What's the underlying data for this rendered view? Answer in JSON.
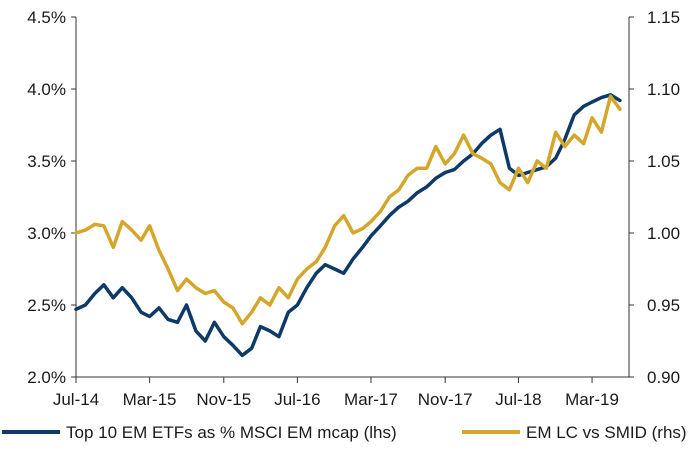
{
  "chart_data": {
    "type": "line",
    "title": "",
    "xlabel": "",
    "ylabel": "",
    "grid": false,
    "legend_placement": "bottom",
    "x_tick_labels": [
      "Jul-14",
      "Mar-15",
      "Nov-15",
      "Jul-16",
      "Mar-17",
      "Nov-17",
      "Jul-18",
      "Mar-19"
    ],
    "y_left": {
      "ylim": [
        0.02,
        0.045
      ],
      "tick_labels": [
        "2.0%",
        "2.5%",
        "3.0%",
        "3.5%",
        "4.0%",
        "4.5%"
      ]
    },
    "y_right": {
      "ylim": [
        0.9,
        1.15
      ],
      "tick_labels": [
        "0.90",
        "0.95",
        "1.00",
        "1.05",
        "1.10",
        "1.15"
      ]
    },
    "series": [
      {
        "name": "Top 10 EM ETFs as % MSCI EM mcap (lhs)",
        "axis": "left",
        "color": "#0d3a66",
        "points": [
          [
            "2014-07",
            0.0247
          ],
          [
            "2014-08",
            0.025
          ],
          [
            "2014-09",
            0.0258
          ],
          [
            "2014-10",
            0.0264
          ],
          [
            "2014-11",
            0.0255
          ],
          [
            "2014-12",
            0.0262
          ],
          [
            "2015-01",
            0.0255
          ],
          [
            "2015-02",
            0.0245
          ],
          [
            "2015-03",
            0.0242
          ],
          [
            "2015-04",
            0.0248
          ],
          [
            "2015-05",
            0.024
          ],
          [
            "2015-06",
            0.0238
          ],
          [
            "2015-07",
            0.025
          ],
          [
            "2015-08",
            0.0232
          ],
          [
            "2015-09",
            0.0225
          ],
          [
            "2015-10",
            0.0238
          ],
          [
            "2015-11",
            0.0228
          ],
          [
            "2015-12",
            0.0222
          ],
          [
            "2016-01",
            0.0215
          ],
          [
            "2016-02",
            0.022
          ],
          [
            "2016-03",
            0.0235
          ],
          [
            "2016-04",
            0.0232
          ],
          [
            "2016-05",
            0.0228
          ],
          [
            "2016-06",
            0.0245
          ],
          [
            "2016-07",
            0.025
          ],
          [
            "2016-08",
            0.0262
          ],
          [
            "2016-09",
            0.0272
          ],
          [
            "2016-10",
            0.0278
          ],
          [
            "2016-11",
            0.0275
          ],
          [
            "2016-12",
            0.0272
          ],
          [
            "2017-01",
            0.0282
          ],
          [
            "2017-02",
            0.029
          ],
          [
            "2017-03",
            0.0298
          ],
          [
            "2017-04",
            0.0305
          ],
          [
            "2017-05",
            0.0312
          ],
          [
            "2017-06",
            0.0318
          ],
          [
            "2017-07",
            0.0322
          ],
          [
            "2017-08",
            0.0328
          ],
          [
            "2017-09",
            0.0332
          ],
          [
            "2017-10",
            0.0338
          ],
          [
            "2017-11",
            0.0342
          ],
          [
            "2017-12",
            0.0344
          ],
          [
            "2018-01",
            0.035
          ],
          [
            "2018-02",
            0.0355
          ],
          [
            "2018-03",
            0.0362
          ],
          [
            "2018-04",
            0.0368
          ],
          [
            "2018-05",
            0.0372
          ],
          [
            "2018-06",
            0.0345
          ],
          [
            "2018-07",
            0.034
          ],
          [
            "2018-08",
            0.0342
          ],
          [
            "2018-09",
            0.0344
          ],
          [
            "2018-10",
            0.0346
          ],
          [
            "2018-11",
            0.0352
          ],
          [
            "2018-12",
            0.0365
          ],
          [
            "2019-01",
            0.0382
          ],
          [
            "2019-02",
            0.0388
          ],
          [
            "2019-03",
            0.0391
          ],
          [
            "2019-04",
            0.0394
          ],
          [
            "2019-05",
            0.0396
          ],
          [
            "2019-06",
            0.0392
          ]
        ]
      },
      {
        "name": "EM LC vs SMID (rhs)",
        "axis": "right",
        "color": "#d4a72c",
        "points": [
          [
            "2014-07",
            1.0
          ],
          [
            "2014-08",
            1.002
          ],
          [
            "2014-09",
            1.006
          ],
          [
            "2014-10",
            1.005
          ],
          [
            "2014-11",
            0.99
          ],
          [
            "2014-12",
            1.008
          ],
          [
            "2015-01",
            1.002
          ],
          [
            "2015-02",
            0.995
          ],
          [
            "2015-03",
            1.005
          ],
          [
            "2015-04",
            0.988
          ],
          [
            "2015-05",
            0.975
          ],
          [
            "2015-06",
            0.96
          ],
          [
            "2015-07",
            0.968
          ],
          [
            "2015-08",
            0.962
          ],
          [
            "2015-09",
            0.958
          ],
          [
            "2015-10",
            0.96
          ],
          [
            "2015-11",
            0.952
          ],
          [
            "2015-12",
            0.948
          ],
          [
            "2016-01",
            0.937
          ],
          [
            "2016-02",
            0.945
          ],
          [
            "2016-03",
            0.955
          ],
          [
            "2016-04",
            0.95
          ],
          [
            "2016-05",
            0.962
          ],
          [
            "2016-06",
            0.955
          ],
          [
            "2016-07",
            0.968
          ],
          [
            "2016-08",
            0.975
          ],
          [
            "2016-09",
            0.98
          ],
          [
            "2016-10",
            0.99
          ],
          [
            "2016-11",
            1.005
          ],
          [
            "2016-12",
            1.012
          ],
          [
            "2017-01",
            1.0
          ],
          [
            "2017-02",
            1.003
          ],
          [
            "2017-03",
            1.008
          ],
          [
            "2017-04",
            1.015
          ],
          [
            "2017-05",
            1.025
          ],
          [
            "2017-06",
            1.03
          ],
          [
            "2017-07",
            1.04
          ],
          [
            "2017-08",
            1.045
          ],
          [
            "2017-09",
            1.045
          ],
          [
            "2017-10",
            1.06
          ],
          [
            "2017-11",
            1.048
          ],
          [
            "2017-12",
            1.055
          ],
          [
            "2018-01",
            1.068
          ],
          [
            "2018-02",
            1.055
          ],
          [
            "2018-03",
            1.052
          ],
          [
            "2018-04",
            1.048
          ],
          [
            "2018-05",
            1.035
          ],
          [
            "2018-06",
            1.03
          ],
          [
            "2018-07",
            1.045
          ],
          [
            "2018-08",
            1.035
          ],
          [
            "2018-09",
            1.05
          ],
          [
            "2018-10",
            1.045
          ],
          [
            "2018-11",
            1.07
          ],
          [
            "2018-12",
            1.06
          ],
          [
            "2019-01",
            1.068
          ],
          [
            "2019-02",
            1.062
          ],
          [
            "2019-03",
            1.08
          ],
          [
            "2019-04",
            1.07
          ],
          [
            "2019-05",
            1.095
          ],
          [
            "2019-06",
            1.086
          ]
        ]
      }
    ]
  }
}
